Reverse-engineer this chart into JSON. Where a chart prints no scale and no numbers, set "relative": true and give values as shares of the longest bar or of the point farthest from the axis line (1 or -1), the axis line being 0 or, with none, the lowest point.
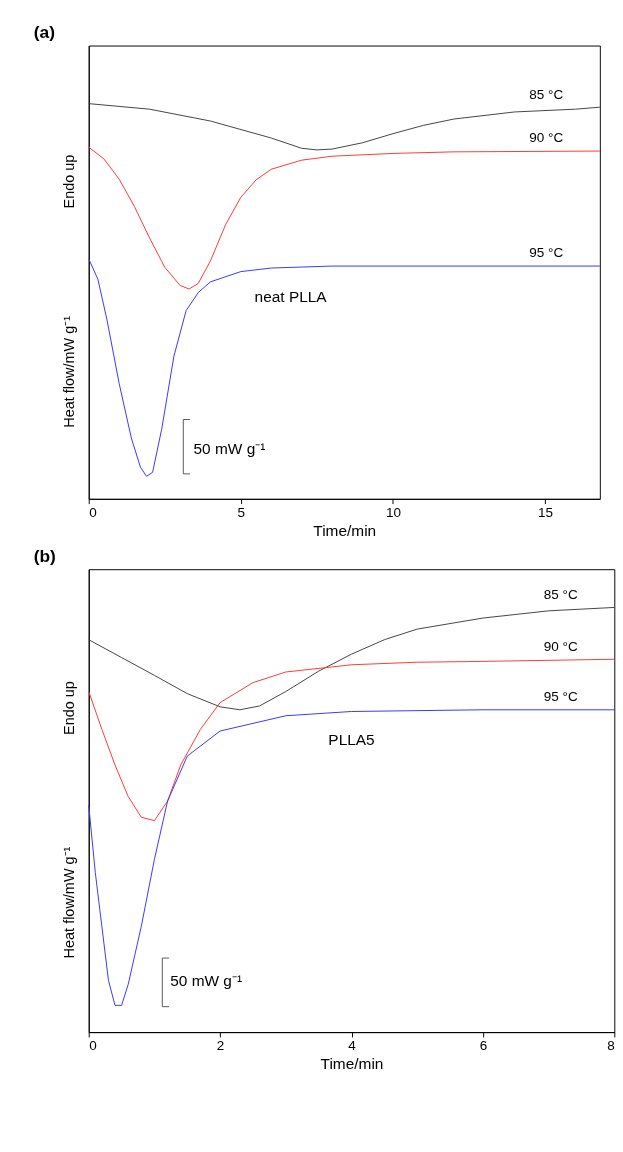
{
  "chart_data": [
    {
      "type": "line",
      "title": "(a)",
      "xlabel": "Time/min",
      "ylabel": "Heat flow/mW g⁻¹",
      "relative": true,
      "xlim": [
        0,
        16.8
      ],
      "xticks": [
        0,
        5,
        10,
        15
      ],
      "tick_labels": "x",
      "legend": false,
      "grid": false,
      "marker": "none",
      "line_style": "solid",
      "annotations": [
        "Endo up",
        "neat PLLA",
        "50 mW g⁻¹"
      ],
      "series": [
        {
          "name": "85 °C",
          "color": "#404040",
          "x": [
            0,
            2,
            4,
            6,
            7,
            7.5,
            8,
            9,
            10,
            11,
            12,
            14,
            16,
            16.8
          ],
          "values": [
            1,
            0.986,
            0.956,
            0.913,
            0.887,
            0.883,
            0.885,
            0.901,
            0.924,
            0.945,
            0.961,
            0.979,
            0.986,
            0.991
          ]
        },
        {
          "name": "90 °C",
          "color": "#ff3333",
          "x": [
            0,
            0.5,
            1,
            1.5,
            2,
            2.5,
            3,
            3.3,
            3.6,
            4,
            4.5,
            5,
            5.5,
            6,
            7,
            8,
            10,
            12,
            16.8
          ],
          "values": [
            0.89,
            0.86,
            0.809,
            0.74,
            0.66,
            0.586,
            0.54,
            0.531,
            0.545,
            0.602,
            0.694,
            0.763,
            0.807,
            0.834,
            0.857,
            0.867,
            0.874,
            0.878,
            0.88
          ]
        },
        {
          "name": "95 °C",
          "color": "#3333ff",
          "x": [
            0,
            0.3,
            0.6,
            1,
            1.4,
            1.7,
            1.9,
            2.1,
            2.4,
            2.8,
            3.2,
            3.6,
            4,
            5,
            6,
            8,
            16.8
          ],
          "values": [
            0.607,
            0.556,
            0.453,
            0.292,
            0.154,
            0.08,
            0.057,
            0.067,
            0.177,
            0.361,
            0.476,
            0.522,
            0.549,
            0.575,
            0.584,
            0.589,
            0.589
          ]
        }
      ]
    },
    {
      "type": "line",
      "title": "(b)",
      "xlabel": "Time/min",
      "ylabel": "Heat flow/mW g⁻¹",
      "relative": true,
      "xlim": [
        0,
        8
      ],
      "xticks": [
        0,
        2,
        4,
        6,
        8
      ],
      "tick_labels": "x",
      "legend": false,
      "grid": false,
      "marker": "none",
      "line_style": "solid",
      "annotations": [
        "Endo up",
        "PLLA5",
        "50 mW g⁻¹"
      ],
      "series": [
        {
          "name": "85 °C",
          "color": "#404040",
          "x": [
            0,
            0.5,
            1,
            1.5,
            2,
            2.3,
            2.6,
            3,
            3.5,
            4,
            4.5,
            5,
            6,
            7,
            8
          ],
          "values": [
            0.924,
            0.882,
            0.84,
            0.797,
            0.766,
            0.759,
            0.768,
            0.802,
            0.85,
            0.89,
            0.924,
            0.949,
            0.975,
            0.992,
            1
          ]
        },
        {
          "name": "90 °C",
          "color": "#ff3333",
          "x": [
            0,
            0.2,
            0.4,
            0.6,
            0.8,
            1.0,
            1.2,
            1.4,
            1.7,
            2,
            2.5,
            3,
            4,
            5,
            6,
            8
          ],
          "values": [
            0.802,
            0.713,
            0.629,
            0.555,
            0.506,
            0.498,
            0.544,
            0.629,
            0.713,
            0.776,
            0.823,
            0.848,
            0.865,
            0.871,
            0.873,
            0.878
          ]
        },
        {
          "name": "95 °C",
          "color": "#3333ff",
          "x": [
            0,
            0.1,
            0.2,
            0.3,
            0.4,
            0.5,
            0.6,
            0.8,
            1,
            1.2,
            1.5,
            2,
            3,
            4,
            6,
            8
          ],
          "values": [
            0.534,
            0.376,
            0.249,
            0.122,
            0.063,
            0.063,
            0.112,
            0.249,
            0.407,
            0.544,
            0.65,
            0.709,
            0.745,
            0.755,
            0.759,
            0.759
          ]
        }
      ]
    }
  ]
}
